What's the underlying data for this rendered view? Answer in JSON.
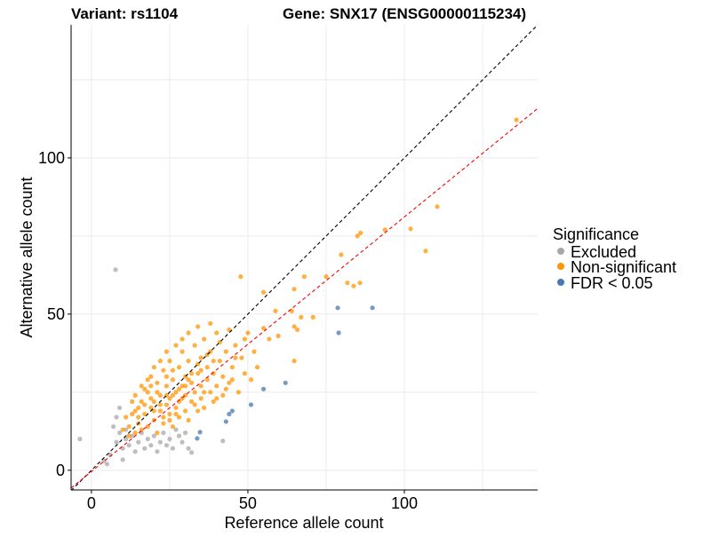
{
  "chart_data": {
    "type": "scatter",
    "title_left": "Variant: rs1104",
    "title_right": "Gene: SNX17 (ENSG00000115234)",
    "xlabel": "Reference allele count",
    "ylabel": "Alternative allele count",
    "xlim": [
      -6.5,
      142.6
    ],
    "ylim": [
      -6.3,
      142.6
    ],
    "x_ticks": [
      0,
      50,
      100
    ],
    "y_ticks": [
      0,
      50,
      100
    ],
    "minor_grid": [
      25,
      75,
      125
    ],
    "grid": true,
    "legend": {
      "title": "Significance",
      "placement": "right",
      "entries": [
        "Excluded",
        "Non-significant",
        "FDR < 0.05"
      ]
    },
    "colors": {
      "Excluded": "#a8a8a8",
      "Non-significant": "#ff9500",
      "FDR < 0.05": "#4a78b0",
      "identity_line": "#000000",
      "fit_line": "#ff0000"
    },
    "reference_lines": [
      {
        "name": "identity",
        "slope": 1,
        "intercept": 0
      },
      {
        "name": "fit",
        "slope": 0.815,
        "intercept": -0.4
      }
    ],
    "series": [
      {
        "name": "Excluded",
        "points": [
          [
            7.7,
            64.2
          ],
          [
            -3.7,
            10
          ],
          [
            4,
            3
          ],
          [
            5,
            2
          ],
          [
            10,
            3.4
          ],
          [
            32,
            5.7
          ],
          [
            42,
            9.4
          ],
          [
            8,
            9
          ],
          [
            9,
            12
          ],
          [
            10,
            7
          ],
          [
            11,
            10
          ],
          [
            12,
            8
          ],
          [
            13,
            11
          ],
          [
            14,
            6
          ],
          [
            15,
            9
          ],
          [
            16,
            12
          ],
          [
            17,
            7
          ],
          [
            18,
            10
          ],
          [
            19,
            8
          ],
          [
            20,
            11
          ],
          [
            21,
            6
          ],
          [
            22,
            9
          ],
          [
            23,
            12
          ],
          [
            24,
            8
          ],
          [
            25,
            10
          ],
          [
            26,
            7
          ],
          [
            28,
            11
          ],
          [
            29,
            9
          ],
          [
            30,
            12
          ],
          [
            27,
            13
          ],
          [
            6,
            5
          ],
          [
            7,
            14
          ],
          [
            9,
            20
          ],
          [
            8,
            17
          ],
          [
            11,
            13
          ],
          [
            31,
            7
          ]
        ]
      },
      {
        "name": "Non-significant",
        "points": [
          [
            12,
            14
          ],
          [
            13,
            18
          ],
          [
            14,
            12
          ],
          [
            15,
            20
          ],
          [
            15,
            15
          ],
          [
            16,
            22
          ],
          [
            16,
            13
          ],
          [
            17,
            18
          ],
          [
            18,
            25
          ],
          [
            18,
            14
          ],
          [
            19,
            20
          ],
          [
            19,
            30
          ],
          [
            20,
            16
          ],
          [
            20,
            22
          ],
          [
            21,
            28
          ],
          [
            21,
            12
          ],
          [
            22,
            19
          ],
          [
            22,
            24
          ],
          [
            23,
            32
          ],
          [
            23,
            15
          ],
          [
            24,
            21
          ],
          [
            24,
            27
          ],
          [
            25,
            18
          ],
          [
            25,
            35
          ],
          [
            25,
            23
          ],
          [
            26,
            29
          ],
          [
            26,
            14
          ],
          [
            27,
            20
          ],
          [
            27,
            25
          ],
          [
            28,
            33
          ],
          [
            28,
            17
          ],
          [
            28,
            22
          ],
          [
            29,
            38
          ],
          [
            29,
            27
          ],
          [
            30,
            19
          ],
          [
            30,
            24
          ],
          [
            30,
            30
          ],
          [
            31,
            35
          ],
          [
            31,
            16
          ],
          [
            32,
            22
          ],
          [
            32,
            28
          ],
          [
            33,
            40
          ],
          [
            33,
            25
          ],
          [
            34,
            19
          ],
          [
            34,
            31
          ],
          [
            35,
            36
          ],
          [
            35,
            23
          ],
          [
            35,
            27
          ],
          [
            36,
            42
          ],
          [
            36,
            20
          ],
          [
            37,
            29
          ],
          [
            37,
            33
          ],
          [
            38,
            25
          ],
          [
            38,
            38
          ],
          [
            39,
            22
          ],
          [
            39,
            31
          ],
          [
            40,
            44
          ],
          [
            40,
            27
          ],
          [
            41,
            35
          ],
          [
            42,
            24
          ],
          [
            42,
            30
          ],
          [
            43,
            38
          ],
          [
            44,
            28
          ],
          [
            45,
            33
          ],
          [
            46,
            40
          ],
          [
            47,
            25
          ],
          [
            48,
            36
          ],
          [
            49,
            31
          ],
          [
            50,
            44
          ],
          [
            51,
            29
          ],
          [
            52,
            38
          ],
          [
            53,
            33
          ],
          [
            27,
            40
          ],
          [
            24,
            38
          ],
          [
            22,
            35
          ],
          [
            20,
            33
          ],
          [
            18,
            29
          ],
          [
            17,
            26
          ],
          [
            14,
            24
          ],
          [
            13,
            22
          ],
          [
            11,
            17
          ],
          [
            10,
            13
          ],
          [
            12,
            11
          ],
          [
            34,
            46
          ],
          [
            38,
            47
          ],
          [
            31,
            44
          ],
          [
            29,
            42
          ],
          [
            41,
            41
          ],
          [
            44,
            45
          ],
          [
            46,
            36
          ],
          [
            49,
            42
          ],
          [
            26,
            32
          ],
          [
            24,
            30
          ],
          [
            21,
            25
          ],
          [
            19,
            23
          ],
          [
            17,
            21
          ],
          [
            15,
            17
          ],
          [
            33,
            21
          ],
          [
            36,
            25
          ],
          [
            40,
            23
          ],
          [
            43,
            26
          ],
          [
            45,
            29
          ],
          [
            28,
            26
          ],
          [
            30,
            27
          ],
          [
            32,
            31
          ],
          [
            34,
            34
          ],
          [
            26,
            24
          ],
          [
            24,
            24
          ],
          [
            22,
            21
          ],
          [
            20,
            19
          ],
          [
            37,
            37
          ],
          [
            39,
            35
          ],
          [
            35,
            32
          ],
          [
            31,
            29
          ],
          [
            29,
            23
          ],
          [
            27,
            18
          ],
          [
            25,
            16
          ],
          [
            23,
            17
          ],
          [
            16,
            27
          ],
          [
            19,
            27
          ],
          [
            14,
            19
          ],
          [
            135.8,
            112.2
          ],
          [
            110.5,
            84.4
          ],
          [
            102,
            77.3
          ],
          [
            106.8,
            70.2
          ],
          [
            86,
            76
          ],
          [
            85,
            75
          ],
          [
            93.8,
            77
          ],
          [
            79.8,
            69
          ],
          [
            75,
            62
          ],
          [
            81.8,
            60
          ],
          [
            83.8,
            59
          ],
          [
            85.8,
            60
          ],
          [
            68,
            62
          ],
          [
            64.8,
            58
          ],
          [
            58.8,
            51
          ],
          [
            64,
            51
          ],
          [
            67,
            49
          ],
          [
            70.8,
            49
          ],
          [
            64.8,
            46
          ],
          [
            65.8,
            45
          ],
          [
            59.7,
            43
          ],
          [
            56.8,
            42
          ],
          [
            64.8,
            35
          ],
          [
            55,
            45.5
          ],
          [
            47.7,
            62
          ],
          [
            55,
            57
          ]
        ]
      },
      {
        "name": "FDR < 0.05",
        "points": [
          [
            78.7,
            52
          ],
          [
            89.8,
            52
          ],
          [
            79,
            44
          ],
          [
            62,
            28
          ],
          [
            55,
            26
          ],
          [
            51,
            21
          ],
          [
            45,
            19
          ],
          [
            44,
            18
          ],
          [
            43,
            15.6
          ],
          [
            34.7,
            12.2
          ],
          [
            33.8,
            10.2
          ]
        ]
      }
    ]
  }
}
